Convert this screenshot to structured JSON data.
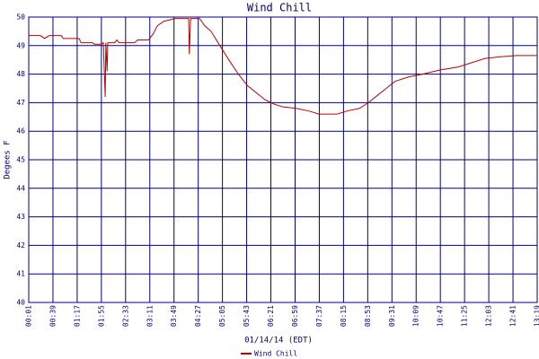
{
  "chart_data": {
    "type": "line",
    "title": "Wind Chill",
    "x_label": "01/14/14 (EDT)",
    "y_label": "Degees F",
    "xlim": [
      1,
      799
    ],
    "xticks": [
      {
        "value": 1,
        "label": "00:01"
      },
      {
        "value": 39,
        "label": "00:39"
      },
      {
        "value": 77,
        "label": "01:17"
      },
      {
        "value": 115,
        "label": "01:55"
      },
      {
        "value": 153,
        "label": "02:33"
      },
      {
        "value": 191,
        "label": "03:11"
      },
      {
        "value": 229,
        "label": "03:49"
      },
      {
        "value": 267,
        "label": "04:27"
      },
      {
        "value": 305,
        "label": "05:05"
      },
      {
        "value": 343,
        "label": "05:43"
      },
      {
        "value": 381,
        "label": "06:21"
      },
      {
        "value": 419,
        "label": "06:59"
      },
      {
        "value": 457,
        "label": "07:37"
      },
      {
        "value": 495,
        "label": "08:15"
      },
      {
        "value": 533,
        "label": "08:53"
      },
      {
        "value": 571,
        "label": "09:31"
      },
      {
        "value": 609,
        "label": "10:09"
      },
      {
        "value": 647,
        "label": "10:47"
      },
      {
        "value": 685,
        "label": "11:25"
      },
      {
        "value": 723,
        "label": "12:03"
      },
      {
        "value": 761,
        "label": "12:41"
      },
      {
        "value": 799,
        "label": "13:19"
      }
    ],
    "ylim": [
      40,
      50
    ],
    "yticks": [
      40,
      41,
      42,
      43,
      44,
      45,
      46,
      47,
      48,
      49,
      50
    ],
    "grid": true,
    "x": [
      1,
      19,
      26,
      33,
      52,
      55,
      80,
      83,
      101,
      104,
      115,
      118,
      121,
      122,
      124,
      125,
      136,
      139,
      143,
      167,
      172,
      189,
      196,
      203,
      213,
      231,
      252,
      253,
      255,
      269,
      277,
      287,
      301,
      315,
      330,
      344,
      358,
      372,
      386,
      400,
      421,
      442,
      456,
      485,
      499,
      520,
      534,
      548,
      562,
      576,
      597,
      619,
      647,
      675,
      696,
      717,
      738,
      767,
      799
    ],
    "series": [
      {
        "name": "Wind Chill",
        "color": "#c00000",
        "values": [
          49.35,
          49.35,
          49.25,
          49.35,
          49.35,
          49.25,
          49.25,
          49.1,
          49.1,
          49.05,
          49.05,
          49.1,
          47.2,
          49.1,
          48.1,
          49.1,
          49.1,
          49.2,
          49.1,
          49.1,
          49.2,
          49.2,
          49.4,
          49.7,
          49.85,
          49.95,
          49.95,
          48.7,
          49.95,
          49.95,
          49.7,
          49.5,
          49.0,
          48.5,
          48.0,
          47.6,
          47.35,
          47.1,
          46.95,
          46.85,
          46.8,
          46.7,
          46.6,
          46.6,
          46.7,
          46.8,
          47.0,
          47.25,
          47.5,
          47.75,
          47.9,
          48.0,
          48.15,
          48.25,
          48.4,
          48.55,
          48.6,
          48.65,
          48.65
        ]
      }
    ]
  }
}
